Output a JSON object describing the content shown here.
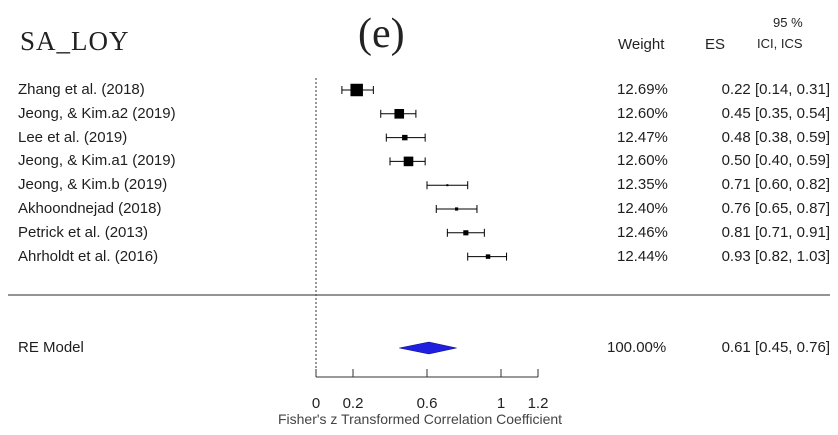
{
  "panel": {
    "name": "SA_LOY",
    "letter": "(e)"
  },
  "headers": {
    "weight": "Weight",
    "es": "ES",
    "ci_top": "95 %",
    "ci_bottom": "ICI, ICS"
  },
  "chart_data": {
    "type": "forest",
    "xlabel": "Fisher's z Transformed Correlation Coefficient",
    "xticks": [
      "0",
      "0.2",
      "0.6",
      "1",
      "1.2"
    ],
    "xlim": [
      0,
      1.2
    ],
    "reference_line": 0,
    "studies": [
      {
        "label": "Zhang et al. (2018)",
        "weight": "12.69%",
        "es": 0.22,
        "ci_low": 0.14,
        "ci_high": 0.31,
        "text": "0.22 [0.14, 0.31]"
      },
      {
        "label": "Jeong, & Kim.a2 (2019)",
        "weight": "12.60%",
        "es": 0.45,
        "ci_low": 0.35,
        "ci_high": 0.54,
        "text": "0.45 [0.35, 0.54]"
      },
      {
        "label": "Lee et al. (2019)",
        "weight": "12.47%",
        "es": 0.48,
        "ci_low": 0.38,
        "ci_high": 0.59,
        "text": "0.48 [0.38, 0.59]"
      },
      {
        "label": "Jeong, & Kim.a1 (2019)",
        "weight": "12.60%",
        "es": 0.5,
        "ci_low": 0.4,
        "ci_high": 0.59,
        "text": "0.50 [0.40, 0.59]"
      },
      {
        "label": "Jeong, & Kim.b (2019)",
        "weight": "12.35%",
        "es": 0.71,
        "ci_low": 0.6,
        "ci_high": 0.82,
        "text": "0.71 [0.60, 0.82]"
      },
      {
        "label": "Akhoondnejad (2018)",
        "weight": "12.40%",
        "es": 0.76,
        "ci_low": 0.65,
        "ci_high": 0.87,
        "text": "0.76 [0.65, 0.87]"
      },
      {
        "label": "Petrick et al. (2013)",
        "weight": "12.46%",
        "es": 0.81,
        "ci_low": 0.71,
        "ci_high": 0.91,
        "text": "0.81 [0.71, 0.91]"
      },
      {
        "label": "Ahrholdt et al. (2016)",
        "weight": "12.44%",
        "es": 0.93,
        "ci_low": 0.82,
        "ci_high": 1.03,
        "text": "0.93 [0.82, 1.03]"
      }
    ],
    "summary": {
      "label": "RE Model",
      "weight": "100.00%",
      "es": 0.61,
      "ci_low": 0.45,
      "ci_high": 0.76,
      "text": "0.61 [0.45, 0.76]"
    },
    "colors": {
      "summary": "#1f1fe0",
      "marks": "#000000"
    }
  }
}
